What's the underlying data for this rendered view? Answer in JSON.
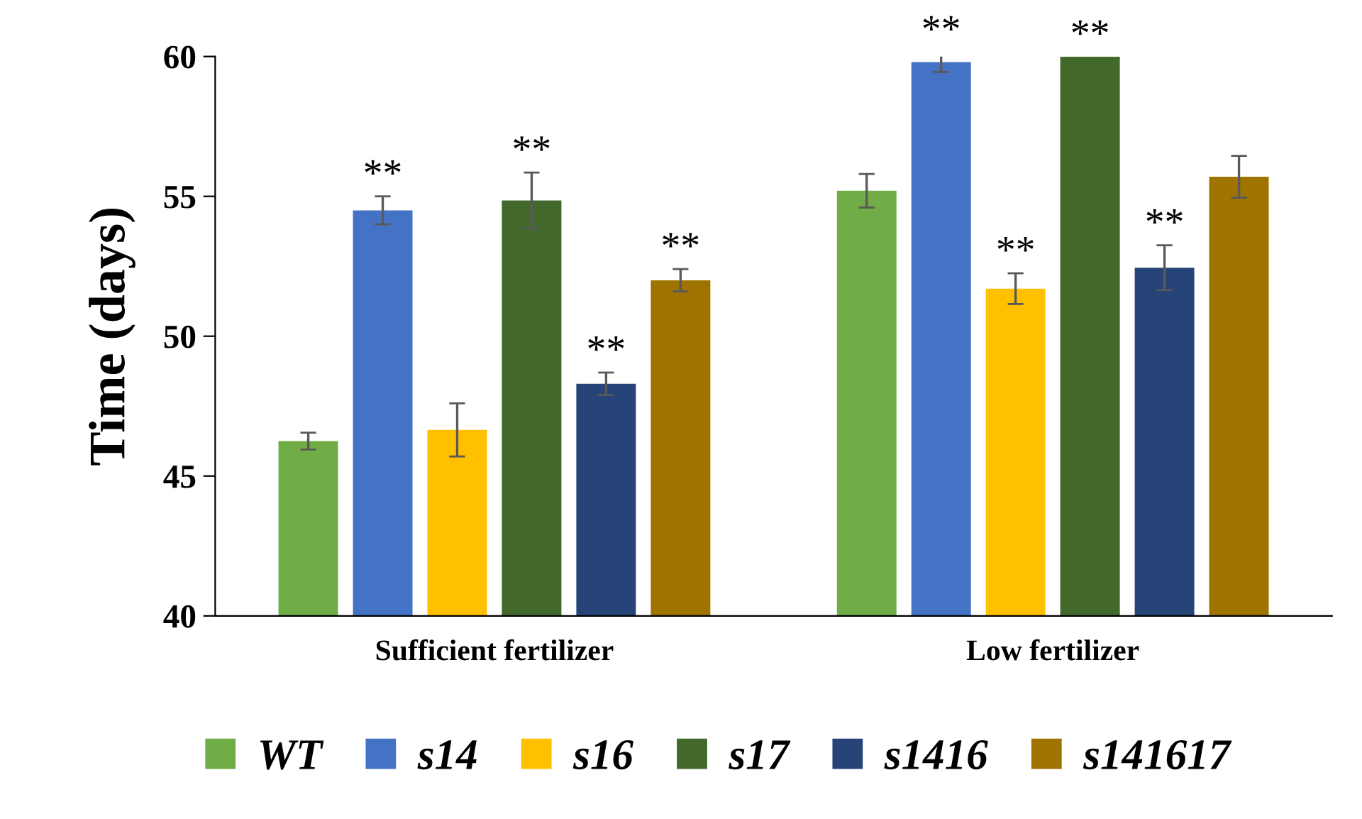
{
  "chart_data": {
    "type": "bar",
    "ylabel": "Time (days)",
    "categories": [
      "Sufficient fertilizer",
      "Low fertilizer"
    ],
    "series": [
      {
        "name": "WT",
        "color": "#70ad47",
        "values": [
          46.25,
          55.2
        ],
        "errors": [
          0.3,
          0.6
        ],
        "value_labels": [
          null,
          null
        ]
      },
      {
        "name": "s14",
        "color": "#4472c4",
        "values": [
          54.5,
          59.8
        ],
        "errors": [
          0.5,
          0.35
        ],
        "value_labels": [
          "**",
          "**"
        ]
      },
      {
        "name": "s16",
        "color": "#ffc000",
        "values": [
          46.65,
          51.7
        ],
        "errors": [
          0.95,
          0.55
        ],
        "value_labels": [
          null,
          "**"
        ]
      },
      {
        "name": "s17",
        "color": "#43682b",
        "values": [
          54.85,
          60
        ],
        "errors": [
          1.0,
          null
        ],
        "value_labels": [
          "**",
          "**"
        ]
      },
      {
        "name": "s1416",
        "color": "#264478",
        "values": [
          48.3,
          52.45
        ],
        "errors": [
          0.4,
          0.8
        ],
        "value_labels": [
          "**",
          "**"
        ]
      },
      {
        "name": "s141617",
        "color": "#9e7300",
        "values": [
          52.0,
          55.7
        ],
        "errors": [
          0.4,
          0.75
        ],
        "value_labels": [
          "**",
          null
        ]
      }
    ],
    "ylim": [
      40,
      60
    ],
    "yticks": [
      40,
      45,
      50,
      55,
      60
    ],
    "grid": false,
    "legend": "bottom"
  }
}
